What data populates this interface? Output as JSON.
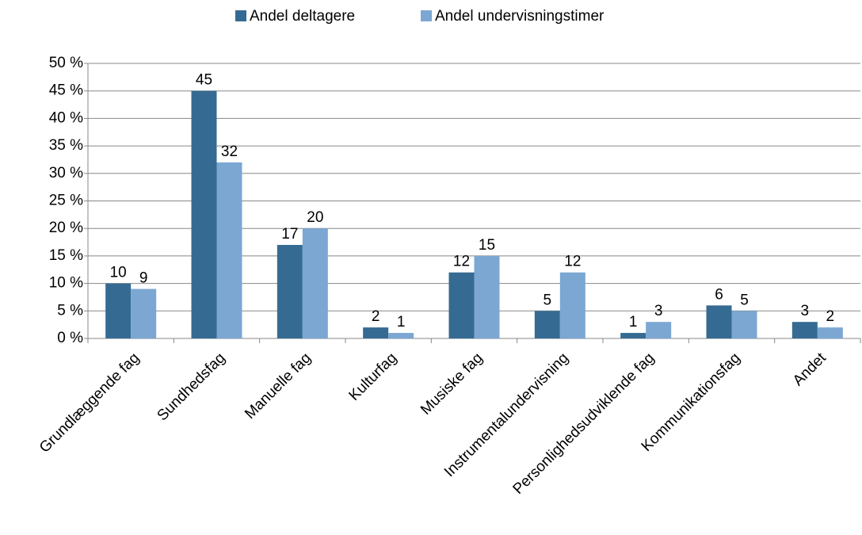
{
  "chart_data": {
    "type": "bar",
    "categories": [
      "Grundlæggende fag",
      "Sundhedsfag",
      "Manuelle fag",
      "Kulturfag",
      "Musiske fag",
      "Instrumentalundervisning",
      "Personlighedsudviklende fag",
      "Kommunikationsfag",
      "Andet"
    ],
    "series": [
      {
        "name": "Andel deltagere",
        "color": "#356b92",
        "values": [
          10,
          45,
          17,
          2,
          12,
          5,
          1,
          6,
          3
        ]
      },
      {
        "name": "Andel undervisningstimer",
        "color": "#7ba7d2",
        "values": [
          9,
          32,
          20,
          1,
          15,
          12,
          3,
          5,
          2
        ]
      }
    ],
    "ylim": [
      0,
      50
    ],
    "yticks": [
      {
        "value": 0,
        "label": "0 %"
      },
      {
        "value": 5,
        "label": "5 %"
      },
      {
        "value": 10,
        "label": "10 %"
      },
      {
        "value": 15,
        "label": "15 %"
      },
      {
        "value": 20,
        "label": "20 %"
      },
      {
        "value": 25,
        "label": "25 %"
      },
      {
        "value": 30,
        "label": "30 %"
      },
      {
        "value": 35,
        "label": "35 %"
      },
      {
        "value": 40,
        "label": "40 %"
      },
      {
        "value": 45,
        "label": "45 %"
      },
      {
        "value": 50,
        "label": "50 %"
      }
    ],
    "grid": true,
    "legend": "top"
  }
}
